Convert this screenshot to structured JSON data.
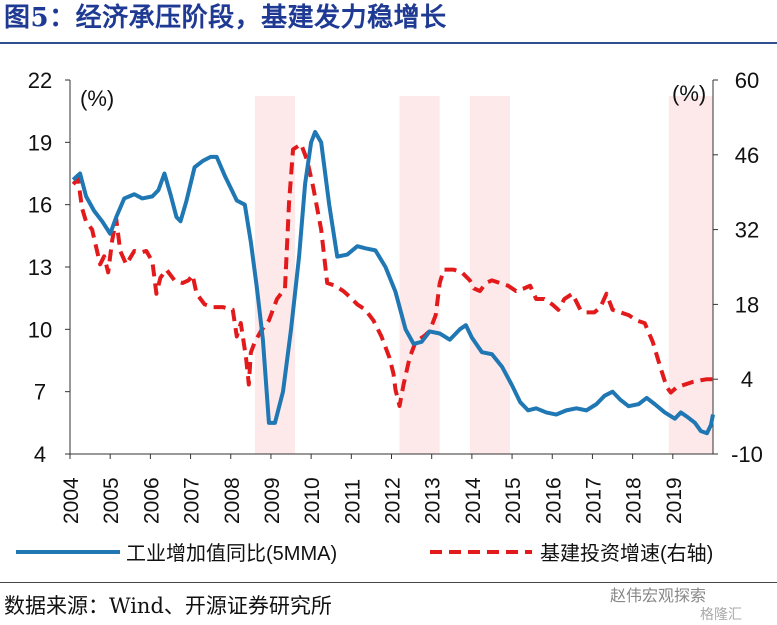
{
  "title": "图5：经济承压阶段，基建发力稳增长",
  "source": "数据来源：Wind、开源证券研究所",
  "watermark": "赵伟宏观探索",
  "watermark_sub": "格隆汇",
  "chart_data": {
    "type": "line",
    "left_unit": "(%)",
    "right_unit": "(%)",
    "y_left": {
      "min": 4,
      "max": 22,
      "ticks": [
        4,
        7,
        10,
        13,
        16,
        19,
        22
      ]
    },
    "y_right": {
      "min": -10,
      "max": 60,
      "ticks": [
        -10,
        4,
        18,
        32,
        46,
        60
      ]
    },
    "x_ticks": [
      "2004",
      "2005",
      "2006",
      "2007",
      "2008",
      "2009",
      "2010",
      "2011",
      "2012",
      "2013",
      "2014",
      "2015",
      "2016",
      "2017",
      "2018",
      "2019"
    ],
    "x_range": [
      2004,
      2020
    ],
    "shaded_periods": [
      [
        2008.6,
        2009.6
      ],
      [
        2012.2,
        2013.2
      ],
      [
        2013.95,
        2014.95
      ],
      [
        2018.9,
        2020.0
      ]
    ],
    "colors": {
      "industrial": "#1f77b4",
      "infrastructure": "#e31a1c",
      "shade": "#fde9ea"
    },
    "series": [
      {
        "name": "工业增加值同比(5MMA)",
        "axis": "left",
        "points": [
          [
            2004.08,
            17.2
          ],
          [
            2004.25,
            17.5
          ],
          [
            2004.4,
            16.4
          ],
          [
            2004.6,
            15.7
          ],
          [
            2004.8,
            15.2
          ],
          [
            2005.0,
            14.6
          ],
          [
            2005.15,
            15.4
          ],
          [
            2005.35,
            16.3
          ],
          [
            2005.6,
            16.5
          ],
          [
            2005.8,
            16.3
          ],
          [
            2006.05,
            16.4
          ],
          [
            2006.2,
            16.7
          ],
          [
            2006.35,
            17.5
          ],
          [
            2006.5,
            16.5
          ],
          [
            2006.65,
            15.4
          ],
          [
            2006.75,
            15.2
          ],
          [
            2006.9,
            16.2
          ],
          [
            2007.1,
            17.8
          ],
          [
            2007.3,
            18.1
          ],
          [
            2007.5,
            18.3
          ],
          [
            2007.65,
            18.3
          ],
          [
            2007.85,
            17.4
          ],
          [
            2008.0,
            16.8
          ],
          [
            2008.15,
            16.2
          ],
          [
            2008.35,
            16.0
          ],
          [
            2008.5,
            14.2
          ],
          [
            2008.65,
            12.0
          ],
          [
            2008.8,
            9.5
          ],
          [
            2008.95,
            5.5
          ],
          [
            2009.1,
            5.5
          ],
          [
            2009.3,
            7.0
          ],
          [
            2009.5,
            10.0
          ],
          [
            2009.7,
            13.5
          ],
          [
            2009.85,
            17.0
          ],
          [
            2010.0,
            19.0
          ],
          [
            2010.1,
            19.5
          ],
          [
            2010.25,
            19.0
          ],
          [
            2010.45,
            16.0
          ],
          [
            2010.65,
            13.5
          ],
          [
            2010.9,
            13.6
          ],
          [
            2011.15,
            14.0
          ],
          [
            2011.35,
            13.9
          ],
          [
            2011.6,
            13.8
          ],
          [
            2011.85,
            13.0
          ],
          [
            2012.1,
            11.8
          ],
          [
            2012.35,
            10.0
          ],
          [
            2012.55,
            9.3
          ],
          [
            2012.75,
            9.4
          ],
          [
            2012.95,
            9.9
          ],
          [
            2013.2,
            9.8
          ],
          [
            2013.45,
            9.5
          ],
          [
            2013.7,
            10.0
          ],
          [
            2013.85,
            10.2
          ],
          [
            2014.0,
            9.6
          ],
          [
            2014.25,
            8.9
          ],
          [
            2014.5,
            8.8
          ],
          [
            2014.75,
            8.2
          ],
          [
            2015.0,
            7.3
          ],
          [
            2015.2,
            6.5
          ],
          [
            2015.4,
            6.1
          ],
          [
            2015.6,
            6.2
          ],
          [
            2015.85,
            6.0
          ],
          [
            2016.1,
            5.9
          ],
          [
            2016.35,
            6.1
          ],
          [
            2016.6,
            6.2
          ],
          [
            2016.85,
            6.1
          ],
          [
            2017.1,
            6.4
          ],
          [
            2017.3,
            6.8
          ],
          [
            2017.5,
            7.0
          ],
          [
            2017.7,
            6.6
          ],
          [
            2017.9,
            6.3
          ],
          [
            2018.15,
            6.4
          ],
          [
            2018.35,
            6.7
          ],
          [
            2018.55,
            6.4
          ],
          [
            2018.8,
            6.0
          ],
          [
            2019.05,
            5.7
          ],
          [
            2019.2,
            6.0
          ],
          [
            2019.35,
            5.8
          ],
          [
            2019.55,
            5.5
          ],
          [
            2019.7,
            5.1
          ],
          [
            2019.85,
            5.0
          ],
          [
            2019.95,
            5.4
          ],
          [
            2020.0,
            5.9
          ]
        ]
      },
      {
        "name": "基建投资增速(右轴)",
        "axis": "right",
        "points": [
          [
            2004.08,
            40.5
          ],
          [
            2004.2,
            41.5
          ],
          [
            2004.3,
            36
          ],
          [
            2004.4,
            33.5
          ],
          [
            2004.55,
            32
          ],
          [
            2004.75,
            25.5
          ],
          [
            2004.85,
            27
          ],
          [
            2004.95,
            24
          ],
          [
            2005.05,
            30
          ],
          [
            2005.15,
            34
          ],
          [
            2005.25,
            28
          ],
          [
            2005.4,
            25.5
          ],
          [
            2005.6,
            28
          ],
          [
            2005.8,
            27.8
          ],
          [
            2005.9,
            28
          ],
          [
            2006.05,
            26
          ],
          [
            2006.15,
            20
          ],
          [
            2006.25,
            23
          ],
          [
            2006.4,
            24.5
          ],
          [
            2006.6,
            22.5
          ],
          [
            2006.8,
            22
          ],
          [
            2006.95,
            22.5
          ],
          [
            2007.05,
            23.5
          ],
          [
            2007.15,
            20
          ],
          [
            2007.35,
            18
          ],
          [
            2007.55,
            17.5
          ],
          [
            2007.8,
            17.5
          ],
          [
            2008.05,
            17
          ],
          [
            2008.15,
            12
          ],
          [
            2008.25,
            14.5
          ],
          [
            2008.38,
            8
          ],
          [
            2008.45,
            3
          ],
          [
            2008.5,
            9
          ],
          [
            2008.6,
            11
          ],
          [
            2008.75,
            13
          ],
          [
            2008.95,
            15
          ],
          [
            2009.15,
            19
          ],
          [
            2009.35,
            21
          ],
          [
            2009.45,
            37
          ],
          [
            2009.55,
            47
          ],
          [
            2009.75,
            48
          ],
          [
            2009.9,
            45
          ],
          [
            2010.05,
            40
          ],
          [
            2010.25,
            32
          ],
          [
            2010.4,
            22
          ],
          [
            2010.6,
            21.5
          ],
          [
            2010.8,
            20.5
          ],
          [
            2010.95,
            19.5
          ],
          [
            2011.15,
            18
          ],
          [
            2011.35,
            17
          ],
          [
            2011.55,
            15
          ],
          [
            2011.75,
            12
          ],
          [
            2011.95,
            8
          ],
          [
            2012.05,
            5
          ],
          [
            2012.1,
            2
          ],
          [
            2012.2,
            -1
          ],
          [
            2012.3,
            3
          ],
          [
            2012.45,
            8
          ],
          [
            2012.6,
            11
          ],
          [
            2012.8,
            12
          ],
          [
            2012.95,
            13
          ],
          [
            2013.1,
            16
          ],
          [
            2013.2,
            22
          ],
          [
            2013.3,
            24.5
          ],
          [
            2013.55,
            24.5
          ],
          [
            2013.75,
            24
          ],
          [
            2013.95,
            22.5
          ],
          [
            2014.05,
            21
          ],
          [
            2014.2,
            20.5
          ],
          [
            2014.35,
            22
          ],
          [
            2014.5,
            22.5
          ],
          [
            2014.7,
            22
          ],
          [
            2014.9,
            21.5
          ],
          [
            2015.1,
            20.5
          ],
          [
            2015.3,
            21
          ],
          [
            2015.45,
            21.5
          ],
          [
            2015.6,
            19
          ],
          [
            2015.8,
            19
          ],
          [
            2016.0,
            18
          ],
          [
            2016.15,
            17
          ],
          [
            2016.3,
            19
          ],
          [
            2016.5,
            20
          ],
          [
            2016.7,
            17
          ],
          [
            2016.85,
            16.5
          ],
          [
            2017.05,
            16.5
          ],
          [
            2017.2,
            17.5
          ],
          [
            2017.35,
            20
          ],
          [
            2017.5,
            17
          ],
          [
            2017.7,
            16.5
          ],
          [
            2017.9,
            16
          ],
          [
            2018.1,
            15
          ],
          [
            2018.3,
            14.5
          ],
          [
            2018.5,
            11
          ],
          [
            2018.7,
            6
          ],
          [
            2018.85,
            2.5
          ],
          [
            2018.95,
            1.5
          ],
          [
            2019.1,
            2.5
          ],
          [
            2019.3,
            3
          ],
          [
            2019.5,
            3.5
          ],
          [
            2019.7,
            3.8
          ],
          [
            2019.85,
            4
          ],
          [
            2020.0,
            4
          ]
        ]
      }
    ]
  }
}
